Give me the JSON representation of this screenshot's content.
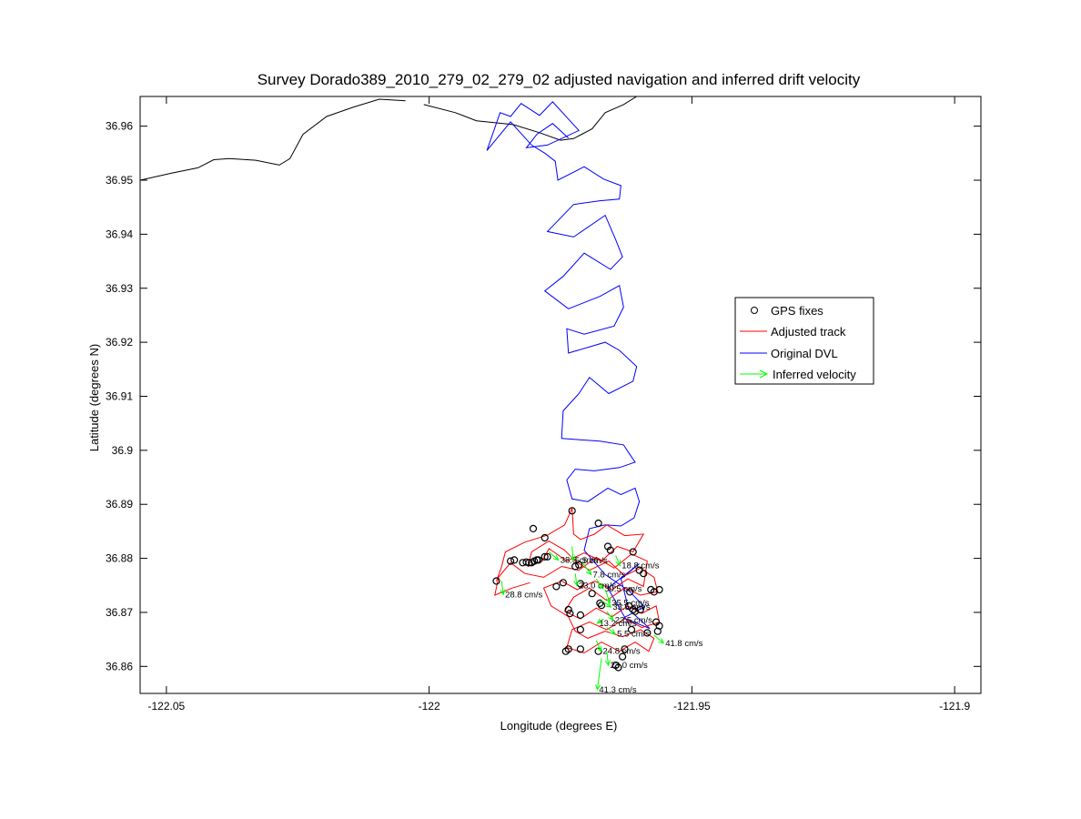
{
  "chart_data": {
    "type": "line",
    "title": "Survey Dorado389_2010_279_02_279_02 adjusted navigation and inferred drift velocity",
    "xlabel": "Longitude (degrees E)",
    "ylabel": "Latitude (degrees N)",
    "xlim": [
      -122.055,
      -121.895
    ],
    "ylim": [
      36.855,
      36.9655
    ],
    "xticks": [
      -122.05,
      -122,
      -121.95,
      -121.9
    ],
    "xtick_labels": [
      "-122.05",
      "-122",
      "-121.95",
      "-121.9"
    ],
    "yticks": [
      36.86,
      36.87,
      36.88,
      36.89,
      36.9,
      36.91,
      36.92,
      36.93,
      36.94,
      36.95,
      36.96
    ],
    "ytick_labels": [
      "36.86",
      "36.87",
      "36.88",
      "36.89",
      "36.9",
      "36.91",
      "36.92",
      "36.93",
      "36.94",
      "36.95",
      "36.96"
    ],
    "legend_position": "right",
    "colors": {
      "gps": "#000000",
      "adjusted": "#ff0000",
      "original": "#0000ff",
      "velocity": "#00ff00",
      "coast": "#000000"
    },
    "legend": [
      {
        "label": "GPS fixes",
        "kind": "gps"
      },
      {
        "label": "Adjusted track",
        "kind": "adjusted"
      },
      {
        "label": "Original DVL",
        "kind": "original"
      },
      {
        "label": "Inferred velocity",
        "kind": "velocity"
      }
    ],
    "coastline": [
      [
        -122.055,
        36.95
      ],
      [
        -122.049,
        36.9513
      ],
      [
        -122.044,
        36.9523
      ],
      [
        -122.041,
        36.9538
      ],
      [
        -122.038,
        36.954
      ],
      [
        -122.033,
        36.9537
      ],
      [
        -122.0285,
        36.9528
      ],
      [
        -122.0265,
        36.954
      ],
      [
        -122.024,
        36.9585
      ],
      [
        -122.0195,
        36.9618
      ],
      [
        -122.0145,
        36.9635
      ],
      [
        -122.0095,
        36.965
      ],
      [
        -122.0045,
        36.9647
      ],
      null,
      [
        -122.001,
        36.964
      ],
      [
        -121.995,
        36.9625
      ],
      [
        -121.991,
        36.961
      ],
      [
        -121.984,
        36.9603
      ],
      [
        -121.979,
        36.9588
      ],
      [
        -121.975,
        36.9574
      ],
      [
        -121.9725,
        36.9577
      ],
      [
        -121.969,
        36.9595
      ],
      [
        -121.9665,
        36.9625
      ],
      [
        -121.963,
        36.964
      ],
      [
        -121.9605,
        36.9655
      ]
    ],
    "original_dvl": [
      [
        -121.9735,
        36.9578
      ],
      [
        -121.9765,
        36.9605
      ],
      [
        -121.9795,
        36.9585
      ],
      [
        -121.9815,
        36.956
      ],
      [
        -121.9775,
        36.9565
      ],
      [
        -121.9715,
        36.9592
      ],
      [
        -121.9765,
        36.9645
      ],
      [
        -121.979,
        36.962
      ],
      [
        -121.9825,
        36.9642
      ],
      [
        -121.9845,
        36.9618
      ],
      [
        -121.9865,
        36.9625
      ],
      [
        -121.989,
        36.9555
      ],
      [
        -121.9845,
        36.9608
      ],
      [
        -121.9805,
        36.9565
      ],
      [
        -121.978,
        36.955
      ],
      [
        -121.976,
        36.9535
      ],
      [
        -121.9755,
        36.95
      ],
      [
        -121.9705,
        36.9525
      ],
      [
        -121.9668,
        36.9502
      ],
      [
        -121.9635,
        36.949
      ],
      [
        -121.9638,
        36.9465
      ],
      [
        -121.9675,
        36.9462
      ],
      [
        -121.9725,
        36.9455
      ],
      [
        -121.9775,
        36.9405
      ],
      [
        -121.9725,
        36.9395
      ],
      [
        -121.9665,
        36.9435
      ],
      [
        -121.9645,
        36.939
      ],
      [
        -121.9632,
        36.9358
      ],
      [
        -121.9655,
        36.9335
      ],
      [
        -121.9705,
        36.9365
      ],
      [
        -121.9745,
        36.9322
      ],
      [
        -121.978,
        36.9295
      ],
      [
        -121.9735,
        36.9262
      ],
      [
        -121.9675,
        36.9285
      ],
      [
        -121.9638,
        36.9305
      ],
      [
        -121.963,
        36.9265
      ],
      [
        -121.9648,
        36.923
      ],
      [
        -121.9705,
        36.9215
      ],
      [
        -121.9738,
        36.9225
      ],
      [
        -121.9735,
        36.918
      ],
      [
        -121.9665,
        36.92
      ],
      [
        -121.9638,
        36.9185
      ],
      [
        -121.9605,
        36.9155
      ],
      [
        -121.9612,
        36.9128
      ],
      [
        -121.9658,
        36.9105
      ],
      [
        -121.9695,
        36.9135
      ],
      [
        -121.9715,
        36.9105
      ],
      [
        -121.9745,
        36.9073
      ],
      [
        -121.9748,
        36.9022
      ],
      [
        -121.9675,
        36.9017
      ],
      [
        -121.963,
        36.901
      ],
      [
        -121.962,
        36.8995
      ],
      [
        -121.9608,
        36.8978
      ],
      [
        -121.9638,
        36.8968
      ],
      [
        -121.9685,
        36.8962
      ],
      [
        -121.9722,
        36.8965
      ],
      [
        -121.9738,
        36.8945
      ],
      [
        -121.9728,
        36.891
      ],
      [
        -121.9698,
        36.8905
      ],
      [
        -121.966,
        36.893
      ],
      [
        -121.9635,
        36.8918
      ],
      [
        -121.9608,
        36.893
      ],
      [
        -121.96,
        36.8905
      ],
      [
        -121.961,
        36.8875
      ],
      [
        -121.9635,
        36.886
      ],
      [
        -121.9665,
        36.8862
      ],
      [
        -121.9695,
        36.8855
      ],
      [
        -121.9705,
        36.8815
      ],
      [
        -121.9665,
        36.877
      ],
      [
        -121.962,
        36.874
      ],
      [
        -121.959,
        36.871
      ],
      [
        -121.963,
        36.869
      ],
      [
        -121.958,
        36.867
      ],
      [
        -121.962,
        36.8705
      ],
      [
        -121.9635,
        36.8762
      ],
      [
        -121.96,
        36.879
      ],
      [
        -121.966,
        36.8745
      ],
      [
        -121.962,
        36.8678
      ]
    ],
    "adjusted_track": [
      [
        -121.9872,
        36.8758
      ],
      [
        -121.9862,
        36.8785
      ],
      [
        -121.9855,
        36.8812
      ],
      [
        -121.9818,
        36.883
      ],
      [
        -121.9775,
        36.8843
      ],
      [
        -121.9742,
        36.8862
      ],
      [
        -121.9728,
        36.8893
      ],
      [
        -121.9725,
        36.8845
      ],
      [
        -121.9712,
        36.8835
      ],
      [
        -121.9685,
        36.8845
      ],
      [
        -121.9662,
        36.8862
      ],
      [
        -121.9628,
        36.8842
      ],
      [
        -121.9592,
        36.8845
      ],
      [
        -121.9612,
        36.8812
      ],
      [
        -121.9642,
        36.8822
      ],
      [
        -121.9672,
        36.8795
      ],
      [
        -121.9705,
        36.881
      ],
      [
        -121.9738,
        36.8795
      ],
      [
        -121.9772,
        36.8818
      ],
      [
        -121.9785,
        36.8795
      ],
      [
        -121.9812,
        36.8785
      ],
      [
        -121.9805,
        36.8812
      ],
      [
        -121.9772,
        36.8832
      ],
      [
        -121.9742,
        36.8815
      ],
      [
        -121.9722,
        36.8795
      ],
      [
        -121.9695,
        36.8778
      ],
      [
        -121.9658,
        36.8795
      ],
      [
        -121.9628,
        36.8768
      ],
      [
        -121.9598,
        36.8782
      ],
      [
        -121.9572,
        36.8765
      ],
      [
        -121.9565,
        36.8738
      ],
      [
        -121.9598,
        36.8732
      ],
      [
        -121.9628,
        36.8745
      ],
      [
        -121.9662,
        36.8722
      ],
      [
        -121.9695,
        36.8745
      ],
      [
        -121.9725,
        36.8728
      ],
      [
        -121.9742,
        36.8702
      ],
      [
        -121.9712,
        36.8688
      ],
      [
        -121.9682,
        36.8708
      ],
      [
        -121.9652,
        36.8692
      ],
      [
        -121.9622,
        36.8712
      ],
      [
        -121.9595,
        36.8698
      ],
      [
        -121.9568,
        36.8712
      ],
      [
        -121.9562,
        36.8682
      ],
      [
        -121.9595,
        36.8672
      ],
      [
        -121.9628,
        36.8688
      ],
      [
        -121.9662,
        36.8668
      ],
      [
        -121.9695,
        36.8682
      ],
      [
        -121.9728,
        36.8668
      ],
      [
        -121.9738,
        36.8635
      ],
      [
        -121.9705,
        36.8625
      ],
      [
        -121.9672,
        36.8645
      ],
      [
        -121.9638,
        36.8628
      ],
      [
        -121.9608,
        36.8645
      ],
      [
        -121.9582,
        36.8628
      ],
      [
        -121.9572,
        36.8652
      ],
      [
        -121.9598,
        36.8668
      ],
      [
        -121.9632,
        36.8655
      ],
      [
        -121.9665,
        36.8665
      ],
      [
        -121.9698,
        36.8652
      ],
      [
        -121.9722,
        36.8665
      ],
      [
        -121.9735,
        36.8692
      ],
      [
        -121.9768,
        36.8712
      ],
      [
        -121.9782,
        36.8745
      ],
      [
        -121.9748,
        36.8758
      ],
      [
        -121.9718,
        36.8742
      ],
      [
        -121.9685,
        36.8758
      ],
      [
        -121.9652,
        36.8742
      ],
      [
        -121.9622,
        36.8762
      ],
      [
        -121.9592,
        36.8748
      ],
      [
        -121.9585,
        36.8795
      ],
      [
        -121.9615,
        36.8808
      ],
      [
        -121.9648,
        36.8782
      ],
      [
        -121.9682,
        36.8802
      ],
      [
        -121.9715,
        36.8778
      ],
      [
        -121.9748,
        36.8785
      ],
      [
        -121.9782,
        36.8765
      ],
      [
        -121.9818,
        36.8772
      ],
      [
        -121.9845,
        36.8792
      ],
      [
        -121.9868,
        36.8765
      ],
      [
        -121.9875,
        36.8732
      ],
      [
        -121.9842,
        36.8745
      ],
      [
        -121.9808,
        36.8755
      ]
    ],
    "gps_fixes": [
      [
        -121.9872,
        36.8758
      ],
      [
        -121.9845,
        36.8795
      ],
      [
        -121.9838,
        36.8797
      ],
      [
        -121.9822,
        36.8792
      ],
      [
        -121.9815,
        36.8793
      ],
      [
        -121.981,
        36.8792
      ],
      [
        -121.9805,
        36.8792
      ],
      [
        -121.98,
        36.8795
      ],
      [
        -121.9792,
        36.8797
      ],
      [
        -121.978,
        36.8803
      ],
      [
        -121.9775,
        36.8803
      ],
      [
        -121.9802,
        36.8855
      ],
      [
        -121.978,
        36.8838
      ],
      [
        -121.9728,
        36.8888
      ],
      [
        -121.9715,
        36.8788
      ],
      [
        -121.9712,
        36.8753
      ],
      [
        -121.969,
        36.8735
      ],
      [
        -121.9678,
        36.8865
      ],
      [
        -121.966,
        36.8822
      ],
      [
        -121.9655,
        36.8815
      ],
      [
        -121.9675,
        36.8717
      ],
      [
        -121.9672,
        36.8713
      ],
      [
        -121.9612,
        36.8812
      ],
      [
        -121.96,
        36.8778
      ],
      [
        -121.9592,
        36.8772
      ],
      [
        -121.9578,
        36.8742
      ],
      [
        -121.9572,
        36.8738
      ],
      [
        -121.9562,
        36.8742
      ],
      [
        -121.9618,
        36.8738
      ],
      [
        -121.962,
        36.8712
      ],
      [
        -121.9612,
        36.8705
      ],
      [
        -121.9608,
        36.8702
      ],
      [
        -121.9598,
        36.8705
      ],
      [
        -121.9568,
        36.8682
      ],
      [
        -121.9562,
        36.8675
      ],
      [
        -121.9565,
        36.8665
      ],
      [
        -121.9585,
        36.8662
      ],
      [
        -121.9615,
        36.8668
      ],
      [
        -121.9628,
        36.8632
      ],
      [
        -121.9632,
        36.8618
      ],
      [
        -121.964,
        36.8598
      ],
      [
        -121.9645,
        36.8602
      ],
      [
        -121.9712,
        36.8632
      ],
      [
        -121.9735,
        36.8632
      ],
      [
        -121.974,
        36.8628
      ],
      [
        -121.9678,
        36.8628
      ],
      [
        -121.9712,
        36.8668
      ],
      [
        -121.9712,
        36.8695
      ],
      [
        -121.9732,
        36.8698
      ],
      [
        -121.9735,
        36.8705
      ],
      [
        -121.9795,
        36.8797
      ],
      [
        -121.9758,
        36.8748
      ],
      [
        -121.9722,
        36.8785
      ],
      [
        -121.9745,
        36.8755
      ]
    ],
    "velocity_arrows": [
      {
        "x": -121.9862,
        "y": 36.8758,
        "u": 0.0003,
        "v": -0.0025,
        "label": "28.8 cm/s"
      },
      {
        "x": -121.9772,
        "y": 36.8812,
        "u": 0.0018,
        "v": -0.0015,
        "label": "38.8 cm/s"
      },
      {
        "x": -121.9728,
        "y": 36.8822,
        "u": 0.0002,
        "v": -0.0026,
        "label": "5.5 cm/s"
      },
      {
        "x": -121.9708,
        "y": 36.8792,
        "u": 0.0016,
        "v": -0.0022,
        "label": "7.8 cm/s"
      },
      {
        "x": -121.9722,
        "y": 36.8772,
        "u": 0.0003,
        "v": -0.0022,
        "label": "23.0 cm/s"
      },
      {
        "x": -121.9645,
        "y": 36.8805,
        "u": 0.0008,
        "v": -0.0018,
        "label": "18.8 cm/s"
      },
      {
        "x": -121.9682,
        "y": 36.8762,
        "u": 0.0012,
        "v": -0.0018,
        "label": "30.5 cm/s"
      },
      {
        "x": -121.9665,
        "y": 36.8742,
        "u": 0.0009,
        "v": -0.0024,
        "label": "35.5 cm/s"
      },
      {
        "x": -121.9672,
        "y": 36.8722,
        "u": 0.0018,
        "v": -0.0012,
        "label": "33.5 cm/s"
      },
      {
        "x": -121.9662,
        "y": 36.8702,
        "u": 0.0012,
        "v": -0.0016,
        "label": "23.5 cm/s"
      },
      {
        "x": -121.9668,
        "y": 36.8688,
        "u": -0.0012,
        "v": -0.0008,
        "label": "13.2 cm/s"
      },
      {
        "x": -121.9662,
        "y": 36.8672,
        "u": 0.0016,
        "v": -0.0012,
        "label": "5.5 cm/s"
      },
      {
        "x": -121.9682,
        "y": 36.8648,
        "u": 0.0009,
        "v": -0.002,
        "label": "24.8 cm/s"
      },
      {
        "x": -121.9662,
        "y": 36.8628,
        "u": 0.0003,
        "v": -0.0026,
        "label": "23.0 cm/s"
      },
      {
        "x": -121.9572,
        "y": 36.8658,
        "u": 0.0018,
        "v": -0.0015,
        "label": "41.8 cm/s"
      },
      {
        "x": -121.9672,
        "y": 36.8615,
        "u": -0.0008,
        "v": -0.0058,
        "label": "41.3 cm/s"
      }
    ]
  }
}
